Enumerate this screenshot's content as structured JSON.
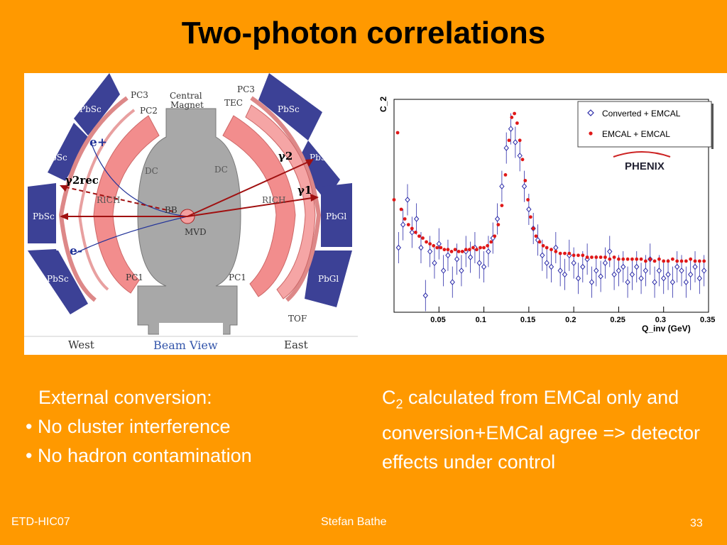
{
  "slide": {
    "title": "Two-photon correlations",
    "footer_left": "ETD-HIC07",
    "footer_center": "Stefan Bathe",
    "footer_right": "33",
    "left_text": {
      "line1": "External conversion:",
      "bullet1": "• No cluster interference",
      "bullet2": "• No hadron contamination"
    },
    "right_text": {
      "c": "C",
      "sub": "2",
      "rest": " calculated from EMCal only and conversion+EMCal agree => detector effects under control"
    }
  },
  "detector": {
    "labels": {
      "pc3_left": "PC3",
      "pc2_left": "PC2",
      "central_magnet_1": "Central",
      "central_magnet_2": "Magnet",
      "pc3_right": "PC3",
      "tec": "TEC",
      "dc_left": "DC",
      "dc_right": "DC",
      "rich_left": "RICH",
      "rich_right": "RICH",
      "bb": "BB",
      "mvd": "MVD",
      "pc1_left": "PC1",
      "pc1_right": "PC1",
      "tof": "TOF",
      "west": "West",
      "east": "East",
      "beam_view": "Beam View",
      "e_plus": "e+",
      "e_minus": "e-",
      "gamma2": "γ2",
      "gamma1": "γ1",
      "gamma2rec": "γ2rec"
    },
    "sectors_west": [
      "PbSc",
      "PbSc",
      "PbSc",
      "PbSc"
    ],
    "sectors_east": [
      "PbSc",
      "PbSc",
      "PbGl",
      "PbGl"
    ],
    "colors": {
      "emcal": "#3c4196",
      "drift": "#f28d8d",
      "magnet": "#a8a8a8",
      "arrow": "#a01010"
    }
  },
  "chart_data": {
    "type": "scatter",
    "title": "",
    "xlabel": "Q_inv (GeV)",
    "ylabel": "C_2",
    "xlim": [
      0,
      0.35
    ],
    "x_ticks": [
      "0.05",
      "0.1",
      "0.15",
      "0.2",
      "0.25",
      "0.3",
      "0.35"
    ],
    "logo": "PHENIX",
    "series": [
      {
        "name": "Converted + EMCAL",
        "marker": "open-diamond",
        "color": "#2a2aa8",
        "points": [
          [
            0.005,
            0.3
          ],
          [
            0.01,
            0.42
          ],
          [
            0.015,
            0.55
          ],
          [
            0.02,
            0.38
          ],
          [
            0.025,
            0.45
          ],
          [
            0.03,
            0.3
          ],
          [
            0.035,
            0.05
          ],
          [
            0.04,
            0.28
          ],
          [
            0.045,
            0.22
          ],
          [
            0.05,
            0.32
          ],
          [
            0.055,
            0.18
          ],
          [
            0.06,
            0.26
          ],
          [
            0.065,
            0.12
          ],
          [
            0.07,
            0.24
          ],
          [
            0.075,
            0.18
          ],
          [
            0.08,
            0.28
          ],
          [
            0.085,
            0.25
          ],
          [
            0.09,
            0.3
          ],
          [
            0.095,
            0.22
          ],
          [
            0.1,
            0.2
          ],
          [
            0.105,
            0.28
          ],
          [
            0.11,
            0.35
          ],
          [
            0.115,
            0.45
          ],
          [
            0.12,
            0.62
          ],
          [
            0.125,
            0.82
          ],
          [
            0.13,
            0.92
          ],
          [
            0.135,
            0.85
          ],
          [
            0.14,
            0.78
          ],
          [
            0.145,
            0.62
          ],
          [
            0.15,
            0.5
          ],
          [
            0.155,
            0.4
          ],
          [
            0.16,
            0.34
          ],
          [
            0.165,
            0.26
          ],
          [
            0.17,
            0.22
          ],
          [
            0.175,
            0.2
          ],
          [
            0.18,
            0.3
          ],
          [
            0.185,
            0.18
          ],
          [
            0.19,
            0.16
          ],
          [
            0.195,
            0.26
          ],
          [
            0.2,
            0.22
          ],
          [
            0.205,
            0.14
          ],
          [
            0.21,
            0.2
          ],
          [
            0.215,
            0.24
          ],
          [
            0.22,
            0.12
          ],
          [
            0.225,
            0.18
          ],
          [
            0.23,
            0.15
          ],
          [
            0.235,
            0.22
          ],
          [
            0.24,
            0.28
          ],
          [
            0.245,
            0.16
          ],
          [
            0.25,
            0.18
          ],
          [
            0.255,
            0.2
          ],
          [
            0.26,
            0.12
          ],
          [
            0.265,
            0.16
          ],
          [
            0.27,
            0.2
          ],
          [
            0.275,
            0.14
          ],
          [
            0.28,
            0.18
          ],
          [
            0.285,
            0.24
          ],
          [
            0.29,
            0.12
          ],
          [
            0.295,
            0.18
          ],
          [
            0.3,
            0.14
          ],
          [
            0.305,
            0.16
          ],
          [
            0.31,
            0.12
          ],
          [
            0.315,
            0.2
          ],
          [
            0.32,
            0.18
          ],
          [
            0.325,
            0.12
          ],
          [
            0.33,
            0.16
          ],
          [
            0.335,
            0.2
          ],
          [
            0.34,
            0.14
          ],
          [
            0.345,
            0.18
          ]
        ]
      },
      {
        "name": "EMCAL + EMCAL",
        "marker": "filled-circle",
        "color": "#e01818",
        "points": [
          [
            0.0,
            0.55
          ],
          [
            0.004,
            0.9
          ],
          [
            0.008,
            0.5
          ],
          [
            0.012,
            0.45
          ],
          [
            0.016,
            0.42
          ],
          [
            0.02,
            0.4
          ],
          [
            0.024,
            0.38
          ],
          [
            0.028,
            0.36
          ],
          [
            0.032,
            0.35
          ],
          [
            0.036,
            0.33
          ],
          [
            0.04,
            0.32
          ],
          [
            0.044,
            0.31
          ],
          [
            0.048,
            0.3
          ],
          [
            0.052,
            0.3
          ],
          [
            0.056,
            0.29
          ],
          [
            0.06,
            0.29
          ],
          [
            0.064,
            0.28
          ],
          [
            0.068,
            0.29
          ],
          [
            0.072,
            0.28
          ],
          [
            0.076,
            0.28
          ],
          [
            0.08,
            0.29
          ],
          [
            0.084,
            0.29
          ],
          [
            0.088,
            0.3
          ],
          [
            0.092,
            0.29
          ],
          [
            0.096,
            0.3
          ],
          [
            0.1,
            0.3
          ],
          [
            0.104,
            0.31
          ],
          [
            0.108,
            0.33
          ],
          [
            0.112,
            0.36
          ],
          [
            0.116,
            0.42
          ],
          [
            0.12,
            0.52
          ],
          [
            0.124,
            0.68
          ],
          [
            0.128,
            0.86
          ],
          [
            0.131,
            0.98
          ],
          [
            0.134,
            1.0
          ],
          [
            0.137,
            0.95
          ],
          [
            0.14,
            0.86
          ],
          [
            0.143,
            0.76
          ],
          [
            0.146,
            0.65
          ],
          [
            0.149,
            0.55
          ],
          [
            0.152,
            0.46
          ],
          [
            0.155,
            0.4
          ],
          [
            0.158,
            0.36
          ],
          [
            0.162,
            0.33
          ],
          [
            0.166,
            0.31
          ],
          [
            0.17,
            0.3
          ],
          [
            0.175,
            0.29
          ],
          [
            0.18,
            0.28
          ],
          [
            0.185,
            0.27
          ],
          [
            0.19,
            0.27
          ],
          [
            0.195,
            0.27
          ],
          [
            0.2,
            0.26
          ],
          [
            0.205,
            0.26
          ],
          [
            0.21,
            0.26
          ],
          [
            0.215,
            0.25
          ],
          [
            0.22,
            0.25
          ],
          [
            0.225,
            0.25
          ],
          [
            0.23,
            0.25
          ],
          [
            0.235,
            0.25
          ],
          [
            0.24,
            0.24
          ],
          [
            0.245,
            0.25
          ],
          [
            0.25,
            0.24
          ],
          [
            0.255,
            0.24
          ],
          [
            0.26,
            0.24
          ],
          [
            0.265,
            0.24
          ],
          [
            0.27,
            0.24
          ],
          [
            0.275,
            0.24
          ],
          [
            0.28,
            0.23
          ],
          [
            0.285,
            0.24
          ],
          [
            0.29,
            0.23
          ],
          [
            0.295,
            0.24
          ],
          [
            0.3,
            0.23
          ],
          [
            0.305,
            0.23
          ],
          [
            0.31,
            0.24
          ],
          [
            0.315,
            0.23
          ],
          [
            0.32,
            0.23
          ],
          [
            0.325,
            0.23
          ],
          [
            0.33,
            0.24
          ],
          [
            0.335,
            0.23
          ],
          [
            0.34,
            0.23
          ],
          [
            0.345,
            0.23
          ]
        ]
      }
    ],
    "legend": "top-right"
  }
}
